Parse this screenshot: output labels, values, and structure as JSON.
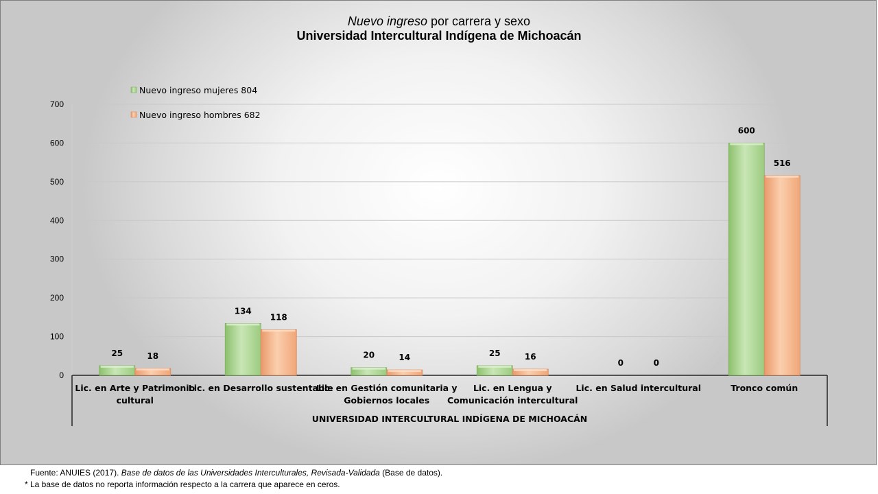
{
  "chart_data": {
    "type": "bar",
    "title_italic": "Nuevo ingreso",
    "title_rest": " por carrera y sexo",
    "subtitle": "Universidad Intercultural Indígena de Michoacán",
    "group_label": "UNIVERSIDAD INTERCULTURAL INDÍGENA DE MICHOACÁN",
    "categories": [
      [
        "Lic. en Arte y Patrimonio",
        "cultural"
      ],
      [
        "Lic. en Desarrollo sustentable"
      ],
      [
        "Lic. en Gestión comunitaria y",
        "Gobiernos locales"
      ],
      [
        "Lic. en Lengua y",
        "Comunicación intercultural"
      ],
      [
        "Lic. en Salud intercultural"
      ],
      [
        "Tronco común"
      ]
    ],
    "series": [
      {
        "name": "Nuevo ingreso mujeres  804",
        "values": [
          25,
          134,
          20,
          25,
          0,
          600
        ],
        "color": "#a9d18e"
      },
      {
        "name": "Nuevo ingreso hombres 682",
        "values": [
          18,
          118,
          14,
          16,
          0,
          516
        ],
        "color": "#f4b183"
      }
    ],
    "ylim": [
      0,
      700
    ],
    "yticks": [
      0,
      100,
      200,
      300,
      400,
      500,
      600,
      700
    ],
    "grid": true,
    "legend_position": "top-left"
  },
  "footer": {
    "source_prefix": "Fuente: ANUIES  (2017). ",
    "source_title": "Base de datos de las Universidades  Interculturales, Revisada-Validada",
    "source_suffix": "  (Base de datos).",
    "note": "* La base de datos no reporta información  respecto a la carrera  que aparece en ceros."
  }
}
